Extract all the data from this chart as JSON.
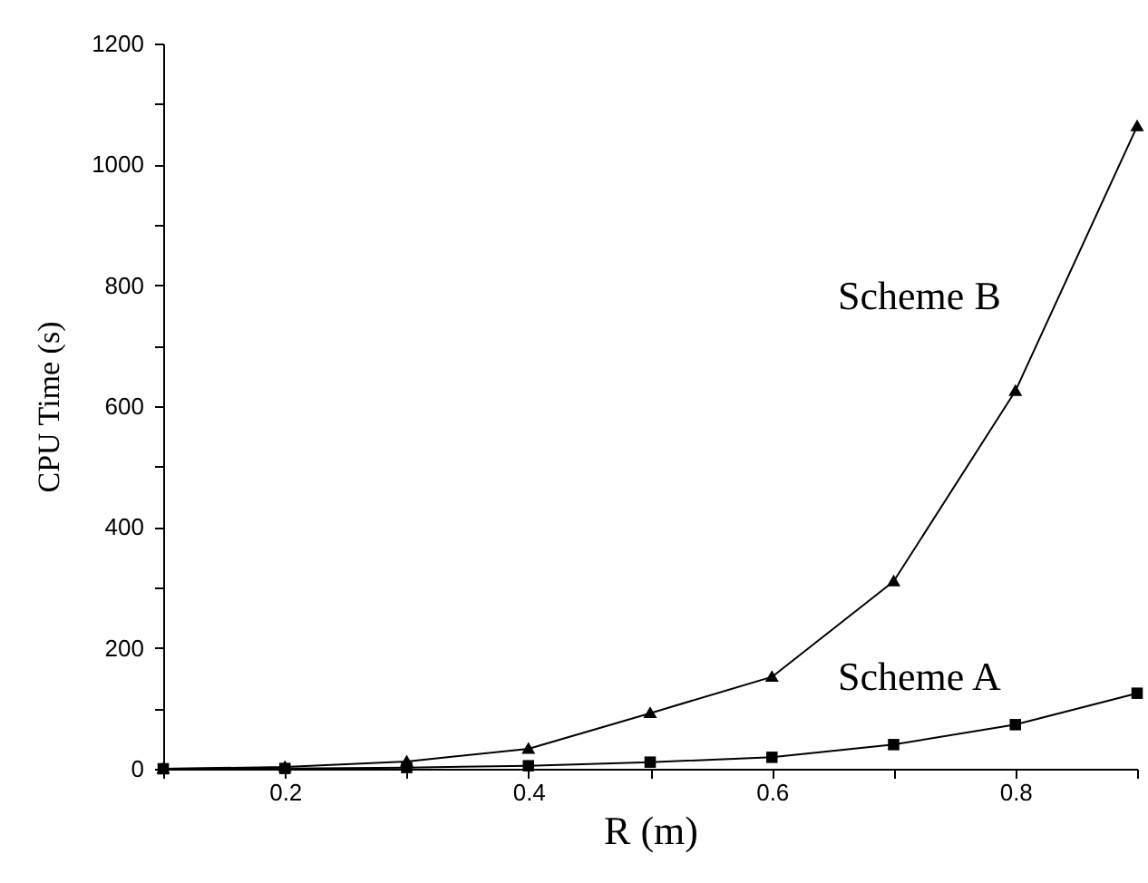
{
  "chart_data": {
    "type": "line",
    "xlabel": "R (m)",
    "ylabel": "CPU Time (s)",
    "x": [
      0.1,
      0.2,
      0.3,
      0.4,
      0.5,
      0.6,
      0.7,
      0.8,
      0.9
    ],
    "series": [
      {
        "name": "Scheme B",
        "color": "#000000",
        "marker": "triangle",
        "values": [
          0,
          3,
          12,
          33,
          92,
          152,
          310,
          625,
          1063
        ]
      },
      {
        "name": "Scheme A",
        "color": "#000000",
        "marker": "square",
        "values": [
          0,
          0.5,
          2,
          5,
          11,
          19,
          40,
          73,
          125
        ]
      }
    ],
    "xlim": [
      0.1,
      0.9
    ],
    "ylim": [
      0,
      1200
    ],
    "xticks": [
      {
        "value": 0.1,
        "label": null
      },
      0.2,
      {
        "value": 0.3,
        "label": null
      },
      0.4,
      {
        "value": 0.5,
        "label": null
      },
      0.6,
      {
        "value": 0.7,
        "label": null
      },
      0.8,
      {
        "value": 0.9,
        "label": null
      }
    ],
    "yticks": [
      0,
      {
        "value": 100,
        "label": null
      },
      200,
      {
        "value": 300,
        "label": null
      },
      400,
      {
        "value": 500,
        "label": null
      },
      600,
      {
        "value": 700,
        "label": null
      },
      800,
      {
        "value": 900,
        "label": null
      },
      1000,
      {
        "value": 1100,
        "label": null
      },
      1200
    ],
    "grid": false,
    "line_style": "solid"
  }
}
